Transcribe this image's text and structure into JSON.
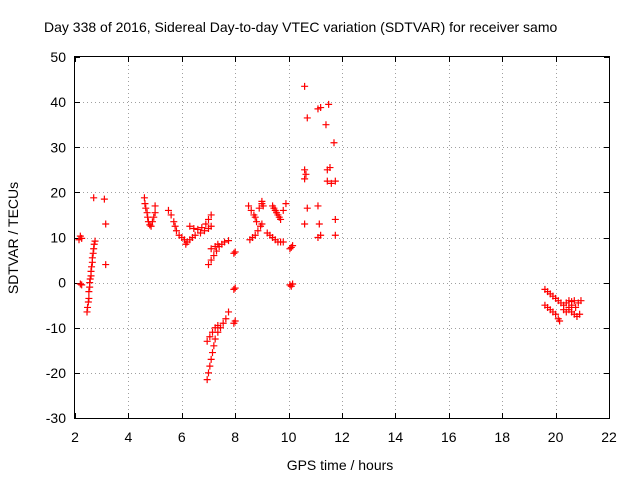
{
  "chart_data": {
    "type": "scatter",
    "title": "Day 338 of 2016, Sidereal Day-to-day VTEC variation (SDTVAR) for receiver samo",
    "xlabel": "GPS time / hours",
    "ylabel": "SDTVAR / TECUs",
    "xlim": [
      2,
      22
    ],
    "ylim": [
      -30,
      50
    ],
    "xticks": [
      2,
      4,
      6,
      8,
      10,
      12,
      14,
      16,
      18,
      20,
      22
    ],
    "yticks": [
      -30,
      -20,
      -10,
      0,
      10,
      20,
      30,
      40,
      50
    ],
    "grid": true,
    "marker": "+",
    "color": "#ff0000",
    "series": [
      {
        "name": "sdtvar",
        "points": [
          [
            2.15,
            9.5
          ],
          [
            2.2,
            10.3
          ],
          [
            2.25,
            9.8
          ],
          [
            2.2,
            -0.3
          ],
          [
            2.25,
            -0.5
          ],
          [
            2.45,
            -6.5
          ],
          [
            2.47,
            -5.5
          ],
          [
            2.5,
            -4.3
          ],
          [
            2.52,
            -3.5
          ],
          [
            2.52,
            -2.0
          ],
          [
            2.55,
            -1.0
          ],
          [
            2.55,
            0.0
          ],
          [
            2.57,
            0.8
          ],
          [
            2.6,
            1.5
          ],
          [
            2.6,
            2.5
          ],
          [
            2.62,
            3.5
          ],
          [
            2.65,
            4.5
          ],
          [
            2.65,
            5.5
          ],
          [
            2.68,
            6.5
          ],
          [
            2.7,
            7.5
          ],
          [
            2.72,
            8.5
          ],
          [
            2.75,
            9.2
          ],
          [
            2.7,
            18.8
          ],
          [
            3.1,
            18.5
          ],
          [
            3.15,
            13.0
          ],
          [
            3.15,
            4.0
          ],
          [
            4.6,
            18.8
          ],
          [
            4.62,
            17.5
          ],
          [
            4.65,
            16.5
          ],
          [
            4.7,
            15.5
          ],
          [
            4.72,
            14.5
          ],
          [
            4.75,
            13.5
          ],
          [
            4.8,
            12.8
          ],
          [
            4.85,
            12.5
          ],
          [
            4.9,
            13.5
          ],
          [
            4.95,
            14.5
          ],
          [
            5.0,
            15.5
          ],
          [
            5.0,
            17.0
          ],
          [
            5.5,
            16.0
          ],
          [
            5.6,
            15.0
          ],
          [
            5.7,
            13.5
          ],
          [
            5.75,
            12.5
          ],
          [
            5.8,
            11.5
          ],
          [
            5.9,
            10.5
          ],
          [
            6.0,
            10.0
          ],
          [
            6.1,
            9.5
          ],
          [
            6.15,
            8.5
          ],
          [
            6.2,
            9.0
          ],
          [
            6.3,
            9.5
          ],
          [
            6.4,
            10.0
          ],
          [
            6.5,
            10.5
          ],
          [
            6.3,
            12.5
          ],
          [
            6.45,
            12.0
          ],
          [
            6.6,
            11.8
          ],
          [
            6.75,
            12.2
          ],
          [
            6.9,
            13.0
          ],
          [
            7.0,
            14.0
          ],
          [
            7.1,
            15.0
          ],
          [
            6.7,
            11.0
          ],
          [
            6.85,
            11.5
          ],
          [
            7.0,
            12.0
          ],
          [
            7.1,
            12.5
          ],
          [
            7.0,
            4.0
          ],
          [
            7.1,
            5.0
          ],
          [
            7.2,
            6.0
          ],
          [
            7.3,
            7.0
          ],
          [
            7.4,
            8.0
          ],
          [
            7.5,
            8.5
          ],
          [
            7.6,
            9.0
          ],
          [
            7.75,
            9.3
          ],
          [
            7.1,
            7.5
          ],
          [
            7.25,
            8.0
          ],
          [
            7.35,
            8.5
          ],
          [
            7.95,
            6.5
          ],
          [
            8.0,
            6.8
          ],
          [
            7.95,
            -1.5
          ],
          [
            8.0,
            -1.2
          ],
          [
            8.0,
            -8.5
          ],
          [
            7.95,
            -9.0
          ],
          [
            6.95,
            -21.5
          ],
          [
            7.0,
            -20.0
          ],
          [
            7.05,
            -18.5
          ],
          [
            7.1,
            -17.0
          ],
          [
            7.15,
            -15.5
          ],
          [
            7.2,
            -14.0
          ],
          [
            7.25,
            -12.5
          ],
          [
            7.35,
            -11.0
          ],
          [
            7.45,
            -10.0
          ],
          [
            7.55,
            -9.0
          ],
          [
            7.65,
            -8.0
          ],
          [
            7.75,
            -6.5
          ],
          [
            6.95,
            -13.0
          ],
          [
            7.05,
            -12.0
          ],
          [
            7.15,
            -11.0
          ],
          [
            7.25,
            -10.0
          ],
          [
            7.35,
            -9.5
          ],
          [
            8.5,
            17.0
          ],
          [
            8.6,
            16.0
          ],
          [
            8.7,
            15.0
          ],
          [
            8.75,
            14.5
          ],
          [
            8.8,
            13.5
          ],
          [
            8.9,
            16.5
          ],
          [
            9.0,
            17.5
          ],
          [
            9.0,
            18.0
          ],
          [
            9.05,
            17.0
          ],
          [
            8.55,
            9.5
          ],
          [
            8.65,
            10.0
          ],
          [
            8.75,
            10.5
          ],
          [
            8.85,
            11.5
          ],
          [
            8.95,
            12.5
          ],
          [
            9.0,
            13.0
          ],
          [
            9.2,
            11.0
          ],
          [
            9.3,
            10.5
          ],
          [
            9.4,
            10.0
          ],
          [
            9.5,
            9.5
          ],
          [
            9.6,
            9.0
          ],
          [
            9.7,
            9.0
          ],
          [
            9.8,
            9.0
          ],
          [
            9.4,
            17.0
          ],
          [
            9.45,
            16.5
          ],
          [
            9.5,
            16.0
          ],
          [
            9.55,
            15.5
          ],
          [
            9.6,
            15.0
          ],
          [
            9.65,
            14.5
          ],
          [
            9.7,
            14.0
          ],
          [
            9.8,
            16.0
          ],
          [
            9.9,
            17.5
          ],
          [
            10.05,
            7.5
          ],
          [
            10.1,
            7.8
          ],
          [
            10.15,
            8.2
          ],
          [
            10.05,
            -0.5
          ],
          [
            10.1,
            -0.8
          ],
          [
            10.15,
            -0.3
          ],
          [
            10.6,
            43.5
          ],
          [
            10.7,
            36.5
          ],
          [
            11.1,
            38.5
          ],
          [
            11.2,
            38.8
          ],
          [
            11.5,
            39.5
          ],
          [
            11.4,
            35.0
          ],
          [
            11.7,
            31.0
          ],
          [
            10.6,
            25.0
          ],
          [
            10.65,
            24.0
          ],
          [
            10.6,
            23.0
          ],
          [
            10.7,
            16.5
          ],
          [
            10.6,
            13.0
          ],
          [
            11.1,
            17.0
          ],
          [
            11.15,
            13.0
          ],
          [
            11.1,
            10.0
          ],
          [
            11.2,
            10.5
          ],
          [
            11.45,
            25.0
          ],
          [
            11.55,
            25.5
          ],
          [
            11.45,
            22.5
          ],
          [
            11.6,
            22.0
          ],
          [
            11.75,
            22.5
          ],
          [
            11.75,
            14.0
          ],
          [
            11.75,
            10.5
          ],
          [
            19.6,
            -1.5
          ],
          [
            19.7,
            -2.0
          ],
          [
            19.8,
            -2.5
          ],
          [
            19.9,
            -3.0
          ],
          [
            20.0,
            -3.5
          ],
          [
            20.1,
            -4.0
          ],
          [
            20.2,
            -4.5
          ],
          [
            20.3,
            -5.0
          ],
          [
            19.6,
            -5.0
          ],
          [
            19.7,
            -5.5
          ],
          [
            19.8,
            -6.0
          ],
          [
            19.9,
            -6.5
          ],
          [
            20.0,
            -7.0
          ],
          [
            20.1,
            -8.0
          ],
          [
            20.15,
            -8.5
          ],
          [
            20.4,
            -4.5
          ],
          [
            20.5,
            -4.0
          ],
          [
            20.6,
            -4.2
          ],
          [
            20.7,
            -4.0
          ],
          [
            20.85,
            -4.5
          ],
          [
            20.95,
            -4.0
          ],
          [
            20.3,
            -6.0
          ],
          [
            20.4,
            -6.5
          ],
          [
            20.5,
            -6.0
          ],
          [
            20.6,
            -6.5
          ],
          [
            20.7,
            -7.0
          ],
          [
            20.8,
            -7.5
          ],
          [
            20.9,
            -7.0
          ],
          [
            20.5,
            -5.5
          ],
          [
            20.6,
            -5.0
          ],
          [
            20.75,
            -5.5
          ]
        ]
      }
    ]
  }
}
